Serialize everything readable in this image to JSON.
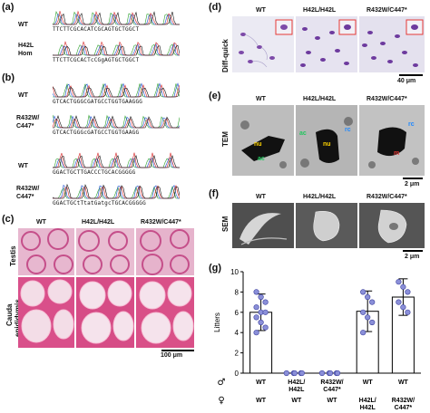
{
  "panel_a": {
    "label": "(a)",
    "rows": [
      {
        "name": "WT",
        "seq": "TTCTTCGCACATCGCAGTGCTGGCT"
      },
      {
        "name": "H42L Hom",
        "name_line1": "H42L",
        "name_line2": "Hom",
        "seq": "TTCTTCGCACTcCGgAGTGCTGGCT"
      }
    ]
  },
  "panel_b": {
    "label": "(b)",
    "rows": [
      {
        "name": "WT",
        "seq": "GTCACTGGGCGATGCCTGGTGAAGGG"
      },
      {
        "name_line1": "R432W/",
        "name_line2": "C447*",
        "seq": "GTCACTGGGcGATGCCTGGTGAAGG"
      },
      {
        "name": "WT",
        "seq": "GGACTGCTTGACCCTGCACGGGGG"
      },
      {
        "name_line1": "R432W/",
        "name_line2": "C447*",
        "seq": "GGACTGCtTtatGatgcTGCACGGGGG"
      }
    ]
  },
  "panel_c": {
    "label": "(c)",
    "cols": [
      "WT",
      "H42L/H42L",
      "R432W/C447*"
    ],
    "rows": [
      "Testis",
      "Cauda epididymis"
    ],
    "row2_line1": "Cauda",
    "row2_line2": "epididymis",
    "scale": "100 μm"
  },
  "panel_d": {
    "label": "(d)",
    "cols": [
      "WT",
      "H42L/H42L",
      "R432W/C447*"
    ],
    "row": "Diff-quick",
    "scale": "40 μm"
  },
  "panel_e": {
    "label": "(e)",
    "cols": [
      "WT",
      "H42L/H42L",
      "R432W/C447*"
    ],
    "row": "TEM",
    "scale": "2 μm",
    "annotations": {
      "nu": "nu",
      "ac": "ac",
      "rc": "rc",
      "m": "m"
    }
  },
  "panel_f": {
    "label": "(f)",
    "cols": [
      "WT",
      "H42L/H42L",
      "R432W/C447*"
    ],
    "row": "SEM",
    "scale": "2 μm"
  },
  "panel_g": {
    "label": "(g)",
    "male_symbol": "♂",
    "female_symbol": "♀",
    "male_row": [
      "WT",
      "H42L/ H42L",
      "R432W/ C447*",
      "WT",
      "WT"
    ],
    "male_row_line1": [
      "WT",
      "H42L/",
      "R432W/",
      "WT",
      "WT"
    ],
    "male_row_line2": [
      "",
      "H42L",
      "C447*",
      "",
      ""
    ],
    "female_row_line1": [
      "WT",
      "WT",
      "WT",
      "H42L/",
      "R432W/"
    ],
    "female_row_line2": [
      "",
      "",
      "",
      "H42L",
      "C447*"
    ]
  },
  "chart_data": {
    "type": "bar",
    "categories": [
      "WT x WT",
      "H42L/H42L x WT",
      "R432W/C447* x WT",
      "WT x H42L/H42L",
      "WT x R432W/C447*"
    ],
    "values": [
      6.0,
      0,
      0,
      6.1,
      7.5
    ],
    "error": [
      1.8,
      0,
      0,
      2.0,
      1.8
    ],
    "points": [
      [
        8.0,
        7.5,
        7.0,
        6.5,
        6.0,
        6.0,
        5.5,
        5.0,
        4.5,
        4.0
      ],
      [
        0,
        0,
        0,
        0,
        0
      ],
      [
        0,
        0,
        0,
        0,
        0
      ],
      [
        8.0,
        7.5,
        7.0,
        6.0,
        5.5,
        5.0,
        4.0
      ],
      [
        9.0,
        8.5,
        8.0,
        7.0,
        6.5,
        6.0
      ]
    ],
    "ylabel": "Litters",
    "ylim": [
      0,
      10
    ],
    "yticks": [
      "0",
      "2",
      "4",
      "6",
      "8",
      "10"
    ],
    "point_color": "#8a8fd8"
  }
}
